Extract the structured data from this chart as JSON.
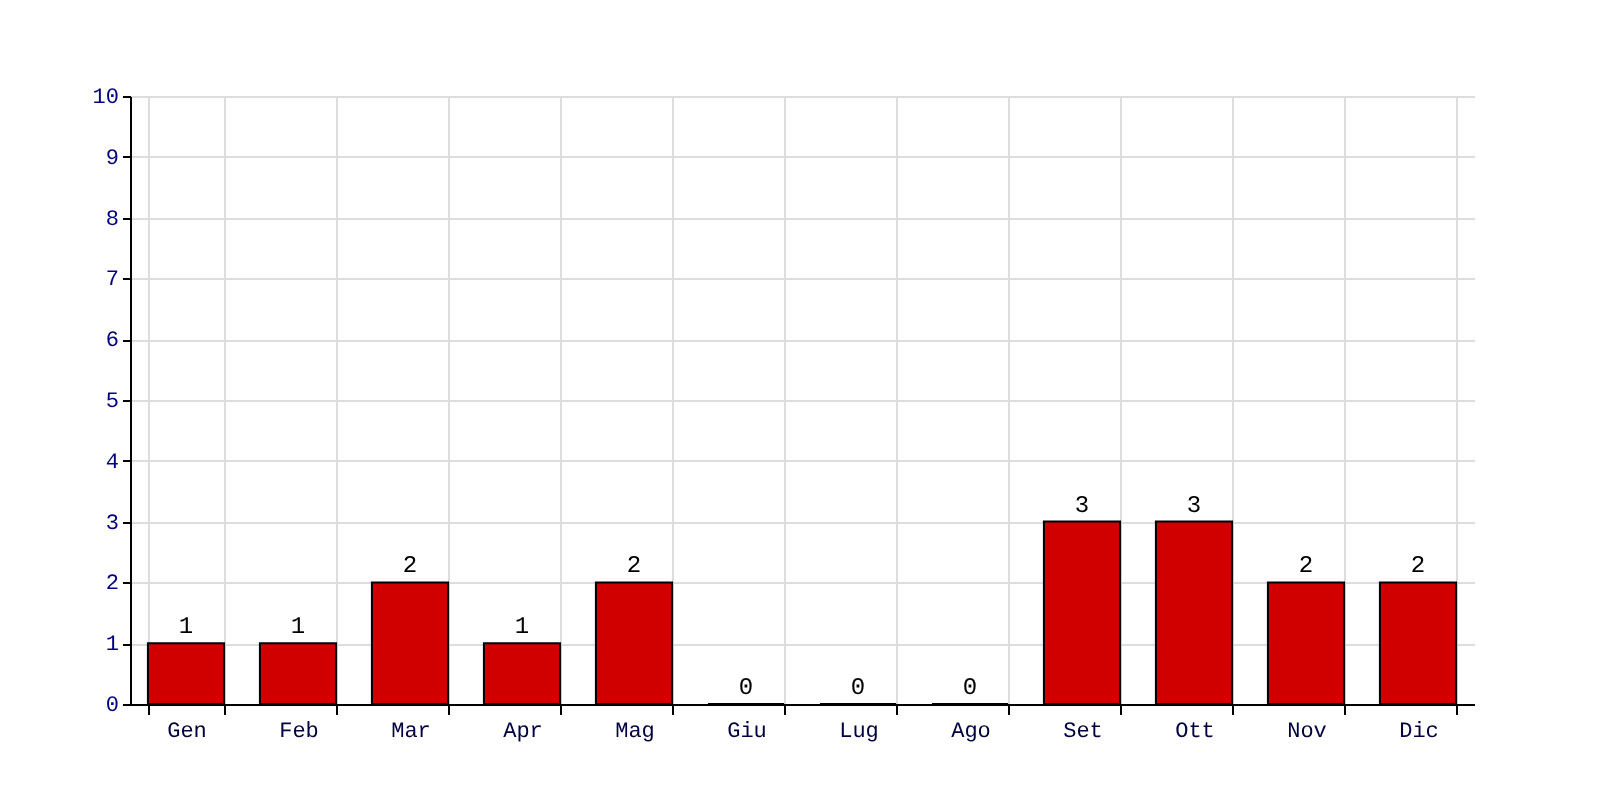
{
  "chart_data": {
    "type": "bar",
    "categories": [
      "Gen",
      "Feb",
      "Mar",
      "Apr",
      "Mag",
      "Giu",
      "Lug",
      "Ago",
      "Set",
      "Ott",
      "Nov",
      "Dic"
    ],
    "values": [
      1,
      1,
      2,
      1,
      2,
      0,
      0,
      0,
      3,
      3,
      2,
      2
    ],
    "color": "#d00000",
    "ylim": [
      0,
      10
    ],
    "yticks": [
      0,
      1,
      2,
      3,
      4,
      5,
      6,
      7,
      8,
      9,
      10
    ],
    "grid": true,
    "data_labels": true
  }
}
